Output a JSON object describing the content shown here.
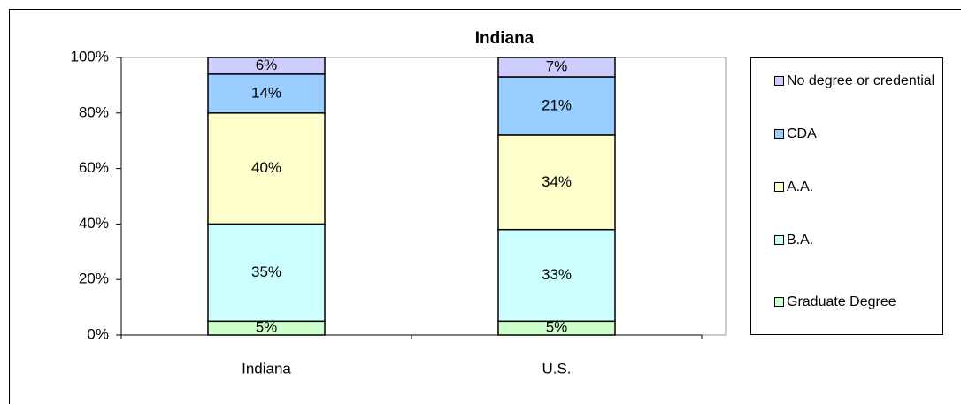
{
  "chart_data": {
    "type": "stacked_bar",
    "title": "Indiana",
    "categories": [
      "Indiana",
      "U.S."
    ],
    "series": [
      {
        "name": "Graduate Degree",
        "color": "#ccffcc",
        "values": [
          5,
          5
        ],
        "value_labels": [
          "5%",
          "5%"
        ]
      },
      {
        "name": "B.A.",
        "color": "#ccffff",
        "values": [
          35,
          33
        ],
        "value_labels": [
          "35%",
          "33%"
        ]
      },
      {
        "name": "A.A.",
        "color": "#ffffcc",
        "values": [
          40,
          34
        ],
        "value_labels": [
          "40%",
          "34%"
        ]
      },
      {
        "name": "CDA",
        "color": "#99ccff",
        "values": [
          14,
          21
        ],
        "value_labels": [
          "14%",
          "21%"
        ]
      },
      {
        "name": "No degree or credential",
        "color": "#ccccff",
        "values": [
          6,
          7
        ],
        "value_labels": [
          "6%",
          "7%"
        ]
      }
    ],
    "ylim": [
      0,
      100
    ],
    "yticks": [
      {
        "value": 0,
        "label": "0%"
      },
      {
        "value": 20,
        "label": "20%"
      },
      {
        "value": 40,
        "label": "40%"
      },
      {
        "value": 60,
        "label": "60%"
      },
      {
        "value": 80,
        "label": "80%"
      },
      {
        "value": 100,
        "label": "100%"
      }
    ],
    "legend": "right"
  }
}
